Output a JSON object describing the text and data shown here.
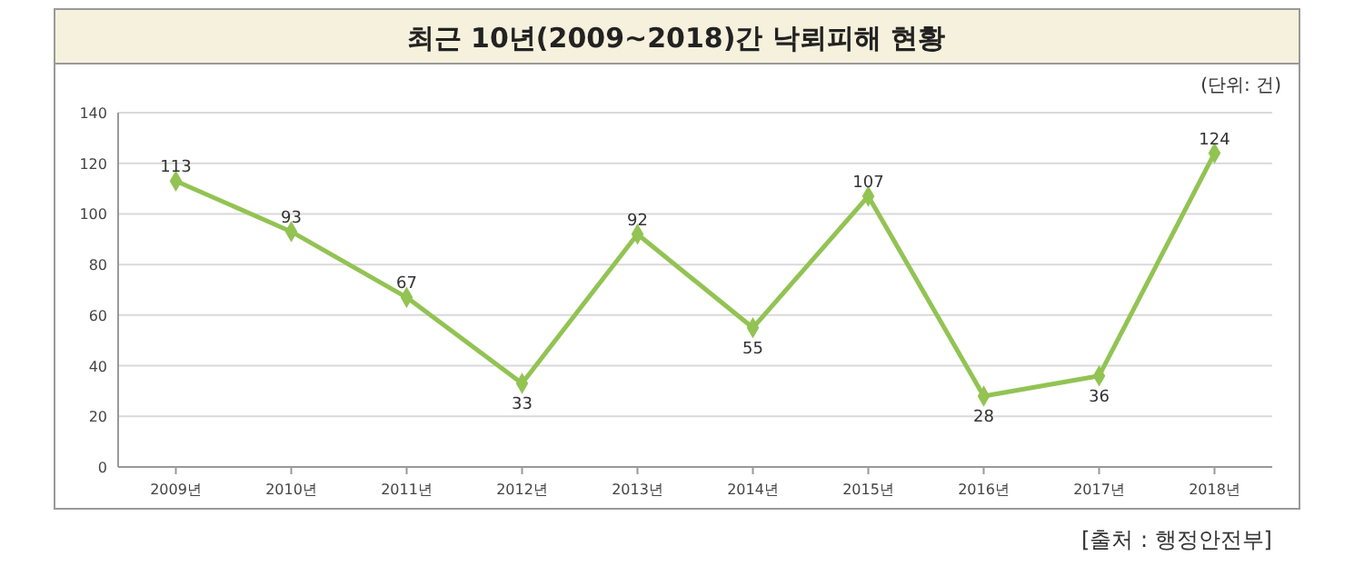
{
  "chart_data": {
    "type": "line",
    "title": "최근 10년(2009~2018)간 낙뢰피해 현황",
    "categories": [
      "2009년",
      "2010년",
      "2011년",
      "2012년",
      "2013년",
      "2014년",
      "2015년",
      "2016년",
      "2017년",
      "2018년"
    ],
    "series": [
      {
        "color": "#92c353",
        "values": [
          113,
          93,
          67,
          33,
          92,
          55,
          107,
          28,
          36,
          124
        ]
      }
    ],
    "ylim": [
      0,
      140
    ],
    "yticks": [
      0,
      20,
      40,
      60,
      80,
      100,
      120,
      140
    ],
    "grid": "y",
    "marker": "diamond",
    "line_style": "solid",
    "data_labels": true,
    "annotations": [
      "(단위: 건)",
      "[출처 : 행정안전부]"
    ]
  }
}
